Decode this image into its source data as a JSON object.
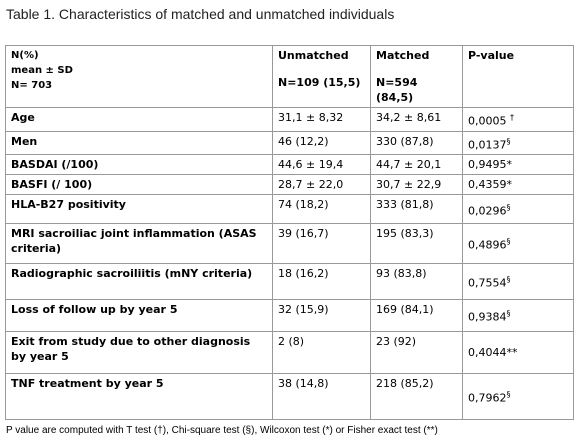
{
  "title": "Table 1. Characteristics of matched and unmatched individuals",
  "table": {
    "header": [
      [
        "N(%)",
        "mean ± SD",
        "N= 703"
      ],
      [
        "Unmatched",
        "N=109 (15,5)"
      ],
      [
        "Matched",
        "N=594 (84,5)"
      ],
      [
        "P-value"
      ]
    ],
    "rows": [
      [
        "Age",
        "31,1 ± 8,32",
        "34,2 ± 8,61",
        "0,0005 ",
        "†"
      ],
      [
        "Men",
        "46 (12,2)",
        "330 (87,8)",
        "0,0137",
        "§"
      ],
      [
        "BASDAI (/100)",
        "44,6 ± 19,4",
        "44,7 ± 20,1",
        "0,9495*",
        null
      ],
      [
        "BASFI (/ 100)",
        "28,7 ± 22,0",
        "30,7 ± 22,9",
        "0,4359*",
        null
      ],
      [
        "HLA-B27 positivity",
        "74 (18,2)",
        "333 (81,8)",
        "0,0296",
        "§"
      ],
      [
        "MRI sacroiliac joint inflammation (ASAS criteria)",
        "39 (16,7)",
        "195 (83,3)",
        "0,4896",
        "§"
      ],
      [
        "Radiographic sacroiliitis (mNY criteria)",
        "18 (16,2)",
        "93 (83,8)",
        "0,7554",
        "§"
      ],
      [
        "Loss of follow up by year 5",
        "32 (15,9)",
        "169 (84,1)",
        "0,9384",
        "§"
      ],
      [
        "Exit from study due to other diagnosis by year 5",
        "2 (8)",
        "23 (92)",
        "0,4044**",
        null
      ],
      [
        "TNF treatment by year 5",
        "38 (14,8)",
        "218 (85,2)",
        "0,7962",
        "§"
      ]
    ]
  },
  "footnote": "P value are computed with T test (†), Chi-square test (§), Wilcoxon test (*) or Fisher exact test (**)"
}
